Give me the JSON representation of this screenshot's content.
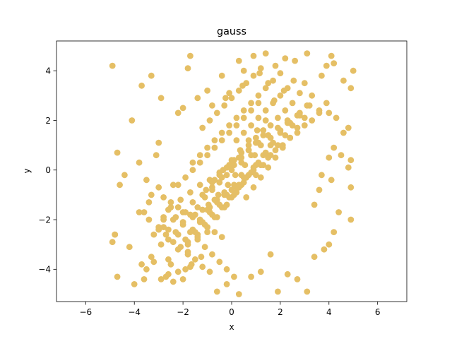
{
  "chart_data": {
    "type": "scatter",
    "title": "gauss",
    "xlabel": "x",
    "ylabel": "y",
    "xlim": [
      -7.2,
      7.2
    ],
    "ylim": [
      -5.3,
      5.2
    ],
    "xticks": [
      -6,
      -4,
      -2,
      0,
      2,
      4,
      6
    ],
    "yticks": [
      -4,
      -2,
      0,
      2,
      4
    ],
    "grid": false,
    "legend": "none",
    "marker_color": "#e5bf65",
    "series": [
      {
        "x": [
          -4.9,
          -4.8,
          -4.7,
          -4.6,
          -4.4,
          -4.2,
          -4.1,
          -3.8,
          -3.7,
          -3.6,
          -3.5,
          -3.5,
          -3.4,
          -3.3,
          -3.3,
          -3.2,
          -3.1,
          -3.0,
          -2.9,
          -2.8,
          -2.7,
          -2.6,
          -2.6,
          -2.5,
          -2.4,
          -2.2,
          -2.0,
          -1.9,
          -1.8,
          -1.7,
          -4.9,
          -4.8,
          -3.7,
          -2.9,
          -2.2,
          -1.7,
          -4.7,
          -4.0,
          -3.6,
          -3.0,
          -2.8,
          -2.4,
          -3.3,
          -2.0,
          -1.8,
          -1.4,
          -1.0,
          -0.8,
          -0.4,
          -0.1,
          0.3,
          0.5,
          0.9,
          1.4,
          1.8,
          2.2,
          2.6,
          3.1,
          4.1,
          3.9,
          3.7,
          4.2,
          4.6,
          4.9,
          5.0,
          4.8,
          4.6,
          4.3,
          4.0,
          3.9,
          3.6,
          3.3,
          3.0,
          2.8,
          4.9,
          4.8,
          4.5,
          4.2,
          4.1,
          4.0,
          3.7,
          3.6,
          3.4,
          4.9,
          4.9,
          4.4,
          4.2,
          4.0,
          3.8,
          3.4,
          3.1,
          2.7,
          2.3,
          1.9,
          1.6,
          1.2,
          0.8,
          0.3,
          -0.2,
          -0.6,
          -1.0,
          -1.4,
          -1.8,
          -2.2,
          -2.6,
          -3.0,
          -3.4,
          -3.8,
          -1.5,
          -1.2,
          -0.9,
          -0.6,
          -0.3,
          0.0,
          0.3,
          0.6,
          0.9,
          1.2,
          1.5,
          1.8,
          2.1,
          2.4,
          2.7,
          3.0,
          3.3,
          3.6,
          -2.5,
          -2.1,
          -1.7,
          -1.3,
          -0.9,
          -0.5,
          -0.1,
          0.3,
          0.7,
          1.1,
          1.5,
          1.9,
          2.3,
          2.7,
          -3.2,
          -2.8,
          -2.4,
          -2.0,
          -1.6,
          -1.2,
          -0.8,
          -0.4,
          0.0,
          0.4,
          0.8,
          1.2,
          1.6,
          2.0,
          2.4,
          2.8,
          3.2,
          -2.9,
          -2.6,
          -2.3,
          -2.0,
          -1.7,
          -1.4,
          -1.1,
          -0.8,
          -0.5,
          -0.2,
          0.1,
          0.4,
          0.7,
          1.0,
          1.3,
          1.6,
          1.9,
          2.2,
          2.5,
          -1.6,
          -1.3,
          -1.0,
          -0.7,
          -0.4,
          -0.1,
          0.2,
          0.5,
          0.8,
          1.1,
          1.4,
          1.7,
          2.0,
          -1.2,
          -0.9,
          -0.6,
          -0.3,
          0.0,
          0.3,
          0.6,
          0.9,
          1.2,
          1.5,
          -0.8,
          -0.5,
          -0.2,
          0.1,
          0.4,
          0.7,
          1.0,
          1.3,
          -2.2,
          -1.9,
          -1.6,
          -1.3,
          -1.0,
          -0.7,
          -0.4,
          -0.1,
          0.2,
          0.5,
          0.8,
          1.1,
          -2.6,
          -2.3,
          -2.0,
          -1.7,
          -1.4,
          -1.1,
          -0.8,
          -0.5,
          -0.2,
          0.1,
          -3.0,
          -2.7,
          -2.4,
          -2.1,
          -1.8,
          -1.5,
          -1.2,
          -0.9,
          -2.8,
          -2.5,
          -2.2,
          -1.9,
          -1.6,
          -1.3,
          -1.0,
          -0.7,
          -0.4,
          0.2,
          0.5,
          0.8,
          1.1,
          1.4,
          1.7,
          2.0,
          2.3,
          0.6,
          0.9,
          1.2,
          1.5,
          1.8,
          2.1,
          2.4,
          2.7,
          3.0,
          1.0,
          1.3,
          1.6,
          1.9,
          2.2,
          2.5,
          2.8,
          3.1,
          0.2,
          0.5,
          0.8,
          1.1,
          1.4,
          1.7,
          2.0,
          2.3,
          -0.2,
          0.1,
          0.4,
          0.7,
          1.0,
          1.3,
          1.6,
          -0.6,
          -0.3,
          0.0,
          0.3,
          0.6,
          0.9,
          -1.0,
          -0.7,
          -0.4,
          -0.1,
          0.2,
          0.5,
          -1.4,
          -1.1,
          -0.8,
          -0.5,
          -0.2,
          0.1,
          0.4,
          -1.8,
          -1.5,
          -1.2,
          -0.9,
          -0.6,
          -0.3,
          -2.2,
          -1.9,
          -1.6,
          -1.3,
          -1.0,
          -0.7,
          0.0,
          0.35,
          0.7,
          1.05,
          1.4,
          -0.35,
          -0.7,
          -1.05,
          0.15,
          0.55,
          0.95,
          -0.15,
          -0.55,
          -0.95,
          1.75,
          2.15,
          2.55,
          1.15,
          0.45,
          -0.25,
          -1.25,
          -1.65
        ],
        "y": [
          -2.9,
          -2.6,
          -4.3,
          -0.6,
          -0.2,
          -3.1,
          2.0,
          0.3,
          -3.8,
          -4.4,
          -4.0,
          -0.4,
          -1.3,
          -3.5,
          -1.0,
          -3.7,
          0.6,
          -0.7,
          -4.4,
          -1.9,
          -4.3,
          -3.6,
          -4.2,
          -3.8,
          -4.5,
          -4.1,
          -4.4,
          -4.0,
          -3.3,
          -3.9,
          4.2,
          -2.6,
          3.4,
          2.9,
          2.3,
          4.6,
          0.7,
          -4.6,
          -1.7,
          1.1,
          -2.0,
          -0.6,
          3.8,
          2.5,
          4.1,
          2.9,
          3.2,
          2.6,
          3.8,
          3.1,
          4.4,
          4.0,
          4.6,
          4.7,
          4.2,
          4.5,
          4.4,
          4.7,
          4.6,
          4.2,
          3.8,
          4.3,
          3.6,
          3.3,
          4.0,
          1.7,
          1.5,
          2.1,
          2.3,
          2.7,
          2.4,
          3.0,
          3.5,
          3.1,
          0.4,
          0.1,
          0.6,
          0.9,
          -0.4,
          0.5,
          -0.2,
          -0.8,
          -1.4,
          -0.7,
          -2.0,
          -1.7,
          -2.5,
          -3.0,
          -3.2,
          -3.5,
          -4.9,
          -4.4,
          -4.2,
          -4.9,
          -3.4,
          -4.1,
          -4.3,
          -5.0,
          -4.6,
          -4.9,
          -2.5,
          -2.7,
          -3.0,
          -2.6,
          -2.4,
          -2.3,
          -2.0,
          -1.7,
          -1.8,
          -1.6,
          -1.5,
          -1.2,
          -1.0,
          -0.8,
          -0.6,
          -0.3,
          0.0,
          0.2,
          0.5,
          0.8,
          1.0,
          1.3,
          1.5,
          1.8,
          2.0,
          2.3,
          -1.5,
          -1.2,
          -0.9,
          -0.6,
          -0.4,
          -0.1,
          0.2,
          0.5,
          0.8,
          1.1,
          1.4,
          1.7,
          2.0,
          2.2,
          -2.6,
          -2.3,
          -2.0,
          -1.7,
          -1.3,
          -1.0,
          -0.7,
          -0.3,
          0.0,
          0.3,
          0.6,
          1.0,
          1.3,
          1.6,
          1.9,
          2.3,
          2.6,
          -3.0,
          -2.8,
          -2.5,
          -2.1,
          -1.8,
          -1.5,
          -1.1,
          -0.8,
          -0.5,
          -0.2,
          0.2,
          0.5,
          0.8,
          1.1,
          1.4,
          1.8,
          2.1,
          2.4,
          2.7,
          0.3,
          0.6,
          0.9,
          1.2,
          1.5,
          1.8,
          2.1,
          2.4,
          2.7,
          3.0,
          3.3,
          3.6,
          3.9,
          1.7,
          2.0,
          2.3,
          2.6,
          2.9,
          3.2,
          3.5,
          3.8,
          4.1,
          3.5,
          -0.5,
          -0.2,
          0.1,
          0.4,
          0.7,
          1.0,
          1.3,
          1.6,
          -0.6,
          -0.3,
          0.0,
          0.3,
          0.6,
          0.9,
          1.2,
          1.5,
          1.8,
          2.1,
          2.4,
          2.7,
          -1.6,
          -1.9,
          -2.2,
          -2.5,
          -2.8,
          -3.1,
          -3.4,
          -3.7,
          -4.0,
          -4.3,
          -2.4,
          -2.6,
          -2.9,
          -3.1,
          -3.4,
          -3.6,
          -3.9,
          -4.1,
          -1.1,
          -1.3,
          -1.5,
          -1.7,
          -1.9,
          -2.1,
          -2.3,
          -2.5,
          -2.7,
          1.2,
          1.5,
          1.8,
          2.1,
          2.4,
          2.7,
          3.0,
          3.3,
          -1.1,
          -0.7,
          -0.3,
          0.1,
          0.5,
          0.9,
          1.3,
          1.7,
          2.1,
          -0.2,
          0.2,
          0.6,
          1.0,
          1.4,
          1.8,
          2.2,
          2.6,
          -0.9,
          -0.5,
          -0.1,
          0.3,
          0.7,
          1.1,
          1.5,
          1.9,
          -1.4,
          -1.0,
          -0.6,
          -0.2,
          0.2,
          0.6,
          1.0,
          -1.9,
          -1.5,
          -1.1,
          -0.7,
          -0.3,
          0.1,
          -2.3,
          -1.9,
          -1.5,
          -1.1,
          -0.7,
          -0.3,
          -2.6,
          -2.2,
          -1.8,
          -1.4,
          -1.0,
          -0.6,
          -0.2,
          -2.9,
          -2.5,
          -2.1,
          -1.7,
          -1.3,
          -0.9,
          -3.2,
          -2.8,
          -2.4,
          -2.0,
          -1.6,
          -1.2,
          0.4,
          0.8,
          1.2,
          1.6,
          2.0,
          0.0,
          -0.4,
          -0.8,
          -0.2,
          0.2,
          0.6,
          -0.6,
          -1.0,
          -1.4,
          2.8,
          3.2,
          3.6,
          3.9,
          3.4,
          2.9,
          -3.5,
          -3.8
        ]
      }
    ]
  }
}
